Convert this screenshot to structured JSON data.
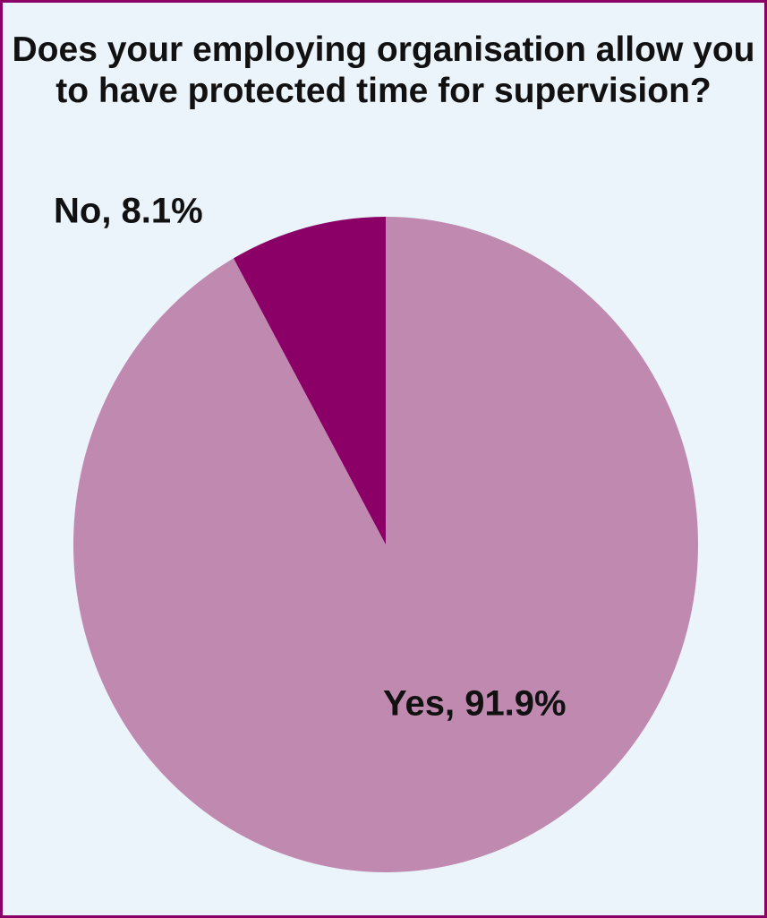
{
  "chart_data": {
    "type": "pie",
    "title": "Does your employing organisation allow you to have protected time for supervision?",
    "values": [
      91.9,
      8.1
    ],
    "labels": [
      "Yes, 91.9%",
      "No, 8.1%"
    ],
    "colors": [
      "#c08ab0",
      "#8b0066"
    ]
  }
}
